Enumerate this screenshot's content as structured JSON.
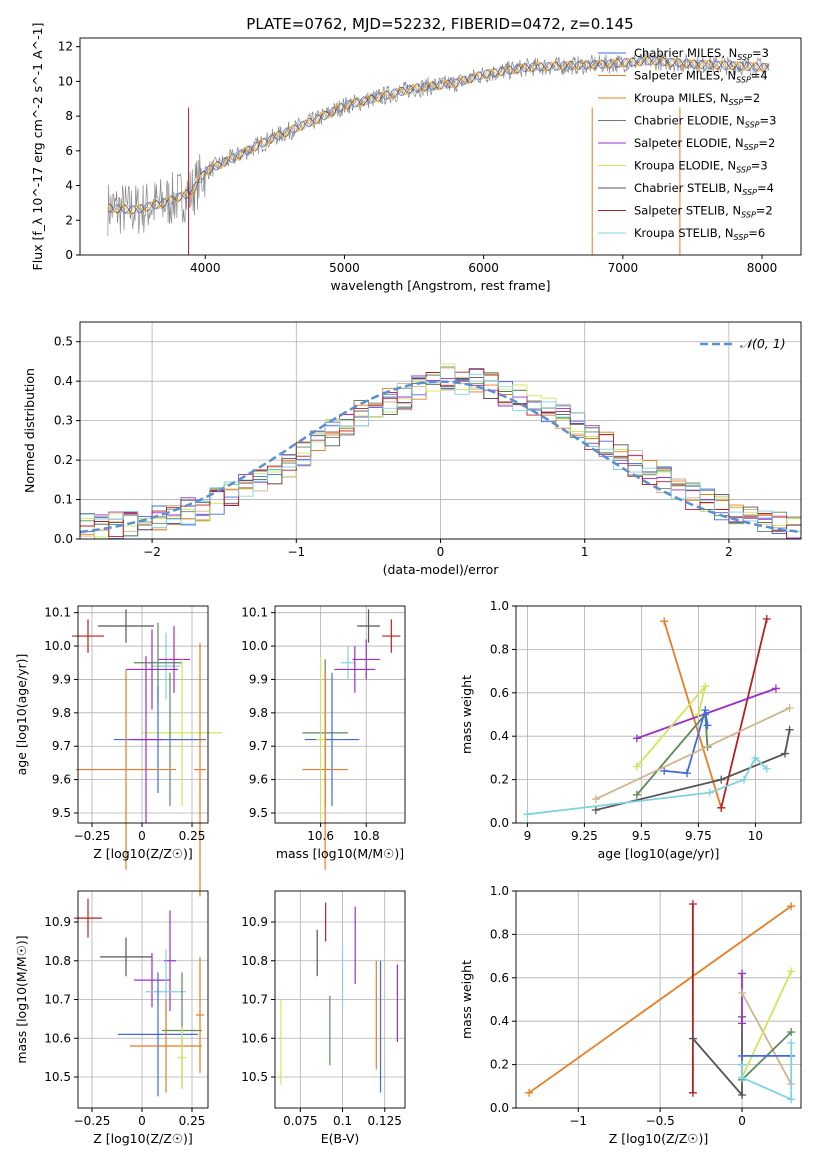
{
  "figure_title": "PLATE=0762, MJD=52232, FIBERID=0472, z=0.145",
  "colors": {
    "series": [
      "#4169e1",
      "#e87d23",
      "#d2b48c",
      "#5c8a5c",
      "#9b30c8",
      "#cce85a",
      "#555555",
      "#b22222",
      "#7fd3e0"
    ],
    "normal_fit": "#5b8fd4",
    "data": "#888888"
  },
  "chart_data": [
    {
      "type": "line",
      "title": "PLATE=0762, MJD=52232, FIBERID=0472, z=0.145",
      "xlabel": "wavelength [Angstrom, rest frame]",
      "ylabel": "Flux [f_λ 10^-17 erg cm^-2 s^-1 A^-1]",
      "xlim": [
        3100,
        8280
      ],
      "ylim": [
        0,
        12.5
      ],
      "xticks": [
        4000,
        5000,
        6000,
        7000,
        8000
      ],
      "yticks": [
        0,
        2,
        4,
        6,
        8,
        10,
        12
      ],
      "x_range": [
        3300,
        8050
      ],
      "continuum": [
        [
          3300,
          2.7
        ],
        [
          3500,
          2.6
        ],
        [
          3700,
          3.0
        ],
        [
          3900,
          3.6
        ],
        [
          4000,
          4.8
        ],
        [
          4200,
          5.6
        ],
        [
          4500,
          6.8
        ],
        [
          4800,
          7.8
        ],
        [
          5000,
          8.6
        ],
        [
          5200,
          9.0
        ],
        [
          5500,
          9.6
        ],
        [
          5800,
          9.9
        ],
        [
          6000,
          10.4
        ],
        [
          6300,
          10.8
        ],
        [
          6600,
          10.9
        ],
        [
          6900,
          11.0
        ],
        [
          7200,
          11.2
        ],
        [
          7500,
          11.0
        ],
        [
          7800,
          10.9
        ],
        [
          8050,
          10.8
        ]
      ],
      "legend_position": "upper right",
      "legend": [
        {
          "label": "Chabrier MILES, N",
          "sub": "SSP",
          "n": "=3"
        },
        {
          "label": "Salpeter MILES, N",
          "sub": "SSP",
          "n": "=4"
        },
        {
          "label": "Kroupa MILES, N",
          "sub": "SSP",
          "n": "=2"
        },
        {
          "label": "Chabrier ELODIE, N",
          "sub": "SSP",
          "n": "=3"
        },
        {
          "label": "Salpeter ELODIE, N",
          "sub": "SSP",
          "n": "=2"
        },
        {
          "label": "Kroupa ELODIE, N",
          "sub": "SSP",
          "n": "=3"
        },
        {
          "label": "Chabrier STELIB, N",
          "sub": "SSP",
          "n": "=4"
        },
        {
          "label": "Salpeter STELIB, N",
          "sub": "SSP",
          "n": "=2"
        },
        {
          "label": "Kroupa STELIB, N",
          "sub": "SSP",
          "n": "=6"
        }
      ]
    },
    {
      "type": "bar",
      "xlabel": "(data-model)/error",
      "ylabel": "Normed distribution",
      "xlim": [
        -2.5,
        2.5
      ],
      "ylim": [
        0,
        0.55
      ],
      "xticks": [
        -2,
        -1,
        0,
        1,
        2
      ],
      "yticks": [
        0.0,
        0.1,
        0.2,
        0.3,
        0.4,
        0.5
      ],
      "bin_width": 0.1,
      "legend": "𝒩(0, 1)",
      "legend_position": "upper right",
      "mean_distribution": [
        0.03,
        0.03,
        0.035,
        0.04,
        0.045,
        0.05,
        0.06,
        0.07,
        0.08,
        0.095,
        0.11,
        0.13,
        0.15,
        0.17,
        0.19,
        0.22,
        0.25,
        0.27,
        0.29,
        0.32,
        0.33,
        0.35,
        0.36,
        0.38,
        0.39,
        0.41,
        0.4,
        0.4,
        0.39,
        0.37,
        0.36,
        0.34,
        0.33,
        0.31,
        0.29,
        0.26,
        0.24,
        0.21,
        0.19,
        0.17,
        0.15,
        0.13,
        0.11,
        0.1,
        0.08,
        0.07,
        0.06,
        0.05,
        0.04,
        0.03
      ]
    },
    {
      "type": "scatter",
      "xlabel": "Z [log10(Z/Z☉)]",
      "ylabel": "age  [log10(age/yr)]",
      "xlim": [
        -0.32,
        0.33
      ],
      "ylim": [
        9.47,
        10.12
      ],
      "xticks": [
        -0.25,
        0.0,
        0.25
      ],
      "yticks": [
        9.5,
        9.6,
        9.7,
        9.8,
        9.9,
        10.0,
        10.1
      ],
      "points": [
        {
          "x": -0.27,
          "y": 10.03,
          "ex": 0.08,
          "ey": 0.05,
          "c": 7
        },
        {
          "x": -0.08,
          "y": 10.06,
          "ex": 0.14,
          "ey": 0.05,
          "c": 6
        },
        {
          "x": 0.12,
          "y": 9.94,
          "ex": 0.07,
          "ey": 0.1,
          "c": 8
        },
        {
          "x": 0.08,
          "y": 9.95,
          "ex": 0.12,
          "ey": 0.12,
          "c": 3
        },
        {
          "x": 0.16,
          "y": 9.96,
          "ex": 0.08,
          "ey": 0.1,
          "c": 4
        },
        {
          "x": 0.05,
          "y": 9.93,
          "ex": 0.13,
          "ey": 0.12,
          "c": 4
        },
        {
          "x": 0.2,
          "y": 9.74,
          "ex": 0.2,
          "ey": 0.22,
          "c": 5
        },
        {
          "x": 0.14,
          "y": 9.72,
          "ex": 0.18,
          "ey": 0.2,
          "c": 3
        },
        {
          "x": 0.08,
          "y": 9.72,
          "ex": 0.22,
          "ey": 0.16,
          "c": 0
        },
        {
          "x": 0.29,
          "y": 9.63,
          "ex": 0.03,
          "ey": 0.38,
          "c": 1
        },
        {
          "x": -0.08,
          "y": 9.63,
          "ex": 0.25,
          "ey": 0.3,
          "c": 1
        },
        {
          "x": 0.02,
          "y": 9.72,
          "ex": 0.08,
          "ey": 0.25,
          "c": 4
        }
      ]
    },
    {
      "type": "scatter",
      "xlabel": "mass [log10(M/M☉)]",
      "ylabel": "",
      "xlim": [
        10.4,
        10.97
      ],
      "ylim": [
        9.47,
        10.12
      ],
      "xticks": [
        10.6,
        10.8
      ],
      "yticks": [
        9.5,
        9.6,
        9.7,
        9.8,
        9.9,
        10.0,
        10.1
      ],
      "points": [
        {
          "x": 10.91,
          "y": 10.03,
          "ex": 0.04,
          "ey": 0.05,
          "c": 7
        },
        {
          "x": 10.81,
          "y": 10.06,
          "ex": 0.05,
          "ey": 0.05,
          "c": 6
        },
        {
          "x": 10.8,
          "y": 9.96,
          "ex": 0.06,
          "ey": 0.06,
          "c": 4
        },
        {
          "x": 10.72,
          "y": 9.95,
          "ex": 0.03,
          "ey": 0.05,
          "c": 8
        },
        {
          "x": 10.75,
          "y": 9.93,
          "ex": 0.09,
          "ey": 0.07,
          "c": 4
        },
        {
          "x": 10.62,
          "y": 9.74,
          "ex": 0.1,
          "ey": 0.22,
          "c": 3
        },
        {
          "x": 10.65,
          "y": 9.72,
          "ex": 0.12,
          "ey": 0.2,
          "c": 0
        },
        {
          "x": 10.62,
          "y": 9.63,
          "ex": 0.1,
          "ey": 0.3,
          "c": 1
        },
        {
          "x": 10.6,
          "y": 9.72,
          "ex": 0.02,
          "ey": 0.25,
          "c": 5
        }
      ]
    },
    {
      "type": "line",
      "xlabel": "age  [log10(age/yr)]",
      "ylabel": "mass weight",
      "xlim": [
        8.95,
        10.2
      ],
      "ylim": [
        0.0,
        1.0
      ],
      "xticks": [
        9.0,
        9.25,
        9.5,
        9.75,
        10.0
      ],
      "yticks": [
        0.0,
        0.2,
        0.4,
        0.6,
        0.8,
        1.0
      ],
      "series": [
        {
          "c": 1,
          "x": [
            9.6,
            9.85
          ],
          "y": [
            0.93,
            0.07
          ]
        },
        {
          "c": 7,
          "x": [
            9.85,
            10.05
          ],
          "y": [
            0.07,
            0.94
          ]
        },
        {
          "c": 4,
          "x": [
            9.48,
            10.09
          ],
          "y": [
            0.39,
            0.62
          ]
        },
        {
          "c": 5,
          "x": [
            9.48,
            9.78,
            9.75
          ],
          "y": [
            0.26,
            0.63,
            0.5
          ]
        },
        {
          "c": 3,
          "x": [
            9.48,
            9.78,
            9.79
          ],
          "y": [
            0.13,
            0.5,
            0.35
          ]
        },
        {
          "c": 0,
          "x": [
            9.6,
            9.7,
            9.78,
            9.79
          ],
          "y": [
            0.24,
            0.23,
            0.52,
            0.45
          ]
        },
        {
          "c": 2,
          "x": [
            9.3,
            10.15
          ],
          "y": [
            0.11,
            0.53
          ]
        },
        {
          "c": 6,
          "x": [
            9.3,
            9.85,
            10.13,
            10.15
          ],
          "y": [
            0.06,
            0.2,
            0.32,
            0.43
          ]
        },
        {
          "c": 8,
          "x": [
            9.0,
            9.8,
            9.95,
            10.0,
            10.05
          ],
          "y": [
            0.04,
            0.14,
            0.2,
            0.3,
            0.25
          ]
        }
      ]
    },
    {
      "type": "scatter",
      "xlabel": "Z [log10(Z/Z☉)]",
      "ylabel": "mass [log10(M/M☉)]",
      "xlim": [
        -0.32,
        0.33
      ],
      "ylim": [
        10.42,
        10.98
      ],
      "xticks": [
        -0.25,
        0.0,
        0.25
      ],
      "yticks": [
        10.5,
        10.6,
        10.7,
        10.8,
        10.9
      ],
      "points": [
        {
          "x": -0.27,
          "y": 10.91,
          "ex": 0.07,
          "ey": 0.05,
          "c": 7
        },
        {
          "x": -0.08,
          "y": 10.81,
          "ex": 0.13,
          "ey": 0.05,
          "c": 6
        },
        {
          "x": 0.14,
          "y": 10.8,
          "ex": 0.03,
          "ey": 0.13,
          "c": 4
        },
        {
          "x": 0.05,
          "y": 10.75,
          "ex": 0.09,
          "ey": 0.07,
          "c": 4
        },
        {
          "x": 0.12,
          "y": 10.72,
          "ex": 0.1,
          "ey": 0.11,
          "c": 8
        },
        {
          "x": 0.2,
          "y": 10.62,
          "ex": 0.1,
          "ey": 0.15,
          "c": 3
        },
        {
          "x": 0.08,
          "y": 10.61,
          "ex": 0.2,
          "ey": 0.16,
          "c": 0
        },
        {
          "x": 0.12,
          "y": 10.58,
          "ex": 0.18,
          "ey": 0.12,
          "c": 1
        },
        {
          "x": 0.29,
          "y": 10.66,
          "ex": 0.02,
          "ey": 0.15,
          "c": 1
        },
        {
          "x": 0.2,
          "y": 10.55,
          "ex": 0.02,
          "ey": 0.08,
          "c": 5
        }
      ]
    },
    {
      "type": "scatter",
      "xlabel": "E(B-V)",
      "ylabel": "",
      "xlim": [
        0.06,
        0.137
      ],
      "ylim": [
        10.42,
        10.98
      ],
      "xticks": [
        0.075,
        0.1,
        0.125
      ],
      "yticks": [
        10.5,
        10.6,
        10.7,
        10.8,
        10.9
      ],
      "points": [
        {
          "x": 0.0635,
          "y": 10.59,
          "ey": 0.11,
          "c": 5
        },
        {
          "x": 0.085,
          "y": 10.82,
          "ey": 0.06,
          "c": 6
        },
        {
          "x": 0.09,
          "y": 10.9,
          "ey": 0.05,
          "c": 7
        },
        {
          "x": 0.0925,
          "y": 10.62,
          "ey": 0.09,
          "c": 3
        },
        {
          "x": 0.1,
          "y": 10.76,
          "ey": 0.08,
          "c": 8
        },
        {
          "x": 0.1075,
          "y": 10.84,
          "ey": 0.1,
          "c": 4
        },
        {
          "x": 0.12,
          "y": 10.66,
          "ey": 0.14,
          "c": 1
        },
        {
          "x": 0.1225,
          "y": 10.63,
          "ey": 0.17,
          "c": 0
        },
        {
          "x": 0.1325,
          "y": 10.69,
          "ey": 0.1,
          "c": 4
        }
      ]
    },
    {
      "type": "line",
      "xlabel": "Z [log10(Z/Z☉)]",
      "ylabel": "mass weight",
      "xlim": [
        -1.38,
        0.36
      ],
      "ylim": [
        0.0,
        1.0
      ],
      "xticks": [
        -1.0,
        -0.5,
        0.0
      ],
      "yticks": [
        0.0,
        0.2,
        0.4,
        0.6,
        0.8,
        1.0
      ],
      "series": [
        {
          "c": 1,
          "x": [
            -1.3,
            0.3
          ],
          "y": [
            0.07,
            0.93
          ]
        },
        {
          "c": 7,
          "x": [
            -0.3,
            -0.3
          ],
          "y": [
            0.07,
            0.94
          ]
        },
        {
          "c": 6,
          "x": [
            -0.3,
            0.0,
            0.0,
            0.0
          ],
          "y": [
            0.32,
            0.06,
            0.42,
            0.2
          ]
        },
        {
          "c": 4,
          "x": [
            0.0,
            0.0
          ],
          "y": [
            0.39,
            0.62
          ]
        },
        {
          "c": 2,
          "x": [
            0.0,
            0.3
          ],
          "y": [
            0.53,
            0.11
          ]
        },
        {
          "c": 5,
          "x": [
            0.0,
            0.3
          ],
          "y": [
            0.14,
            0.63
          ]
        },
        {
          "c": 3,
          "x": [
            0.0,
            0.3
          ],
          "y": [
            0.13,
            0.35
          ]
        },
        {
          "c": 0,
          "x": [
            0.0,
            0.3
          ],
          "y": [
            0.24,
            0.24
          ]
        },
        {
          "c": 8,
          "x": [
            0.0,
            0.0,
            0.3,
            0.3
          ],
          "y": [
            0.2,
            0.14,
            0.04,
            0.3
          ]
        }
      ]
    }
  ]
}
